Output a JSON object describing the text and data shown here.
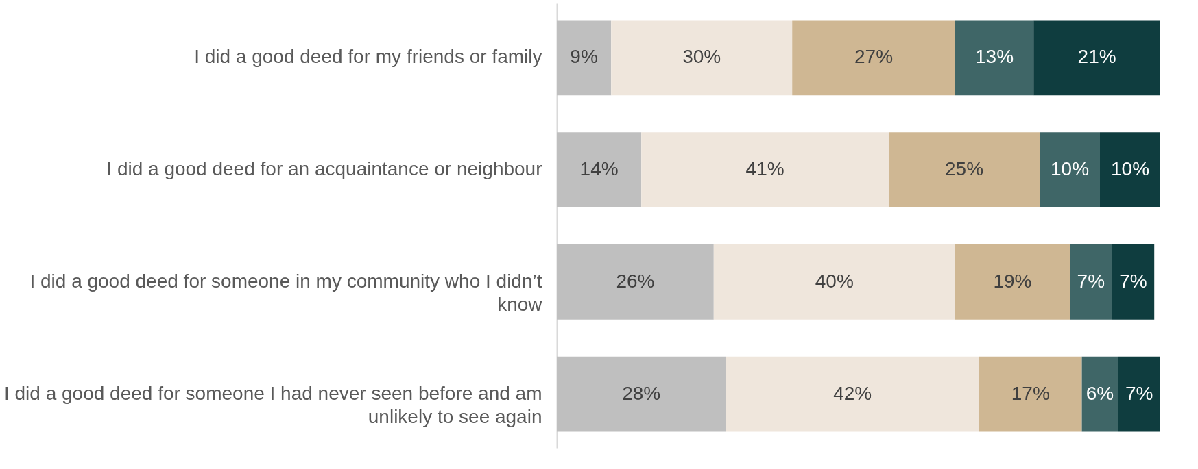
{
  "chart_data": {
    "type": "bar",
    "orientation": "horizontal",
    "stacked": true,
    "categories": [
      "I did a good deed for my friends or family",
      "I did a good deed for an acquaintance or neighbour",
      "I did a good deed for someone in my community who I didn’t know",
      "I did a good deed for someone I had never seen before and am unlikely to see again"
    ],
    "series": [
      {
        "color": "#bfbfbf",
        "values": [
          9,
          14,
          26,
          28
        ],
        "value_labels": [
          "9%",
          "14%",
          "26%",
          "28%"
        ]
      },
      {
        "color": "#efe6dc",
        "values": [
          30,
          41,
          40,
          42
        ],
        "value_labels": [
          "30%",
          "41%",
          "40%",
          "42%"
        ]
      },
      {
        "color": "#cfb793",
        "values": [
          27,
          25,
          19,
          17
        ],
        "value_labels": [
          "27%",
          "25%",
          "19%",
          "17%"
        ]
      },
      {
        "color": "#3f6667",
        "values": [
          13,
          10,
          7,
          6
        ],
        "value_labels": [
          "13%",
          "10%",
          "7%",
          "6%"
        ]
      },
      {
        "color": "#0f3d3f",
        "values": [
          21,
          10,
          7,
          7
        ],
        "value_labels": [
          "21%",
          "10%",
          "7%",
          "7%"
        ]
      }
    ],
    "legend": false,
    "grid": false
  }
}
